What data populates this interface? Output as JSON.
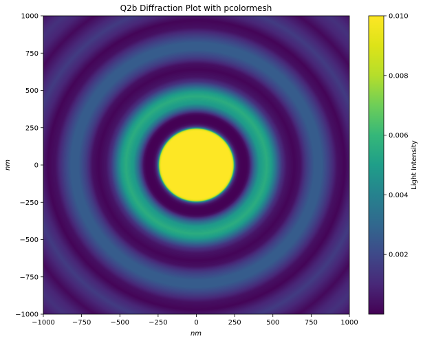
{
  "chart_data": {
    "type": "heatmap",
    "title": "Q2b Diffraction Plot with pcolormesh",
    "xlabel": "nm",
    "ylabel": "nm",
    "xlim": [
      -1000,
      1000
    ],
    "ylim": [
      -1000,
      1000
    ],
    "x_ticks": [
      -1000,
      -750,
      -500,
      -250,
      0,
      250,
      500,
      750,
      1000
    ],
    "y_ticks": [
      -1000,
      -750,
      -500,
      -250,
      0,
      250,
      500,
      750,
      1000
    ],
    "x_tick_labels": [
      "−1000",
      "−750",
      "−500",
      "−250",
      "0",
      "250",
      "500",
      "750",
      "1000"
    ],
    "y_tick_labels": [
      "−1000",
      "−750",
      "−500",
      "−250",
      "0",
      "250",
      "500",
      "750",
      "1000"
    ],
    "colormap": "viridis",
    "color_range": [
      0.0,
      0.01
    ],
    "colorbar": {
      "label": "Light Intensity",
      "ticks": [
        0.002,
        0.004,
        0.006,
        0.008,
        0.01
      ],
      "tick_labels": [
        "0.002",
        "0.004",
        "0.006",
        "0.008",
        "0.010"
      ]
    },
    "radial_profile": {
      "description_units": "radius in nm vs intensity",
      "r": [
        0,
        230,
        240,
        250,
        260,
        275,
        290,
        310,
        330,
        345,
        360,
        380,
        410,
        460,
        490,
        510,
        530,
        560,
        590,
        640,
        680,
        720,
        770,
        820,
        870,
        920,
        970,
        1020,
        1080,
        1140,
        1200,
        1260,
        1320,
        1420
      ],
      "intensity": [
        0.01,
        0.01,
        0.009,
        0.0035,
        0.0012,
        0.0003,
        5e-05,
        0.0,
        3e-05,
        0.0004,
        0.0015,
        0.003,
        0.0048,
        0.0056,
        0.005,
        0.004,
        0.0028,
        0.0013,
        0.0005,
        0.0001,
        0.0004,
        0.0016,
        0.0026,
        0.0026,
        0.0016,
        0.0004,
        0.0001,
        0.0009,
        0.0016,
        0.0009,
        0.0002,
        0.0009,
        0.0013,
        0.0004
      ]
    }
  }
}
